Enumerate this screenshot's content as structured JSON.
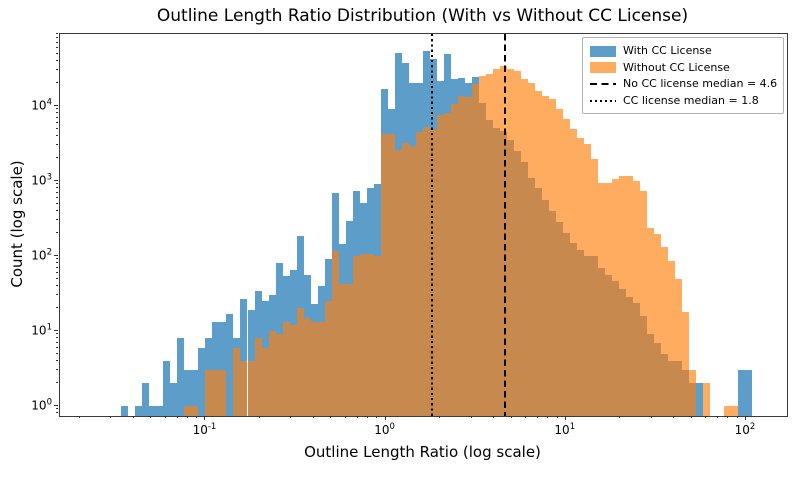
{
  "title": "Outline Length Ratio Distribution (With vs Without CC License)",
  "axes": {
    "xlabel": "Outline Length Ratio (log scale)",
    "ylabel": "Count (log scale)",
    "x_scale": "log",
    "y_scale": "log",
    "x_tick_exponents": [
      -1,
      0,
      1,
      2
    ],
    "y_tick_exponents": [
      0,
      1,
      2,
      3,
      4
    ],
    "tick_color": "#333333",
    "spine_color": "#3a3a3a"
  },
  "legend": {
    "position": "upper right",
    "items": [
      {
        "kind": "patch",
        "label": "With CC License"
      },
      {
        "kind": "patch",
        "label": "Without CC License"
      },
      {
        "kind": "dashed-line",
        "label": "No CC license median = 4.6"
      },
      {
        "kind": "dotted-line",
        "label": "CC license median = 1.8"
      }
    ]
  },
  "chart_data": {
    "type": "bar",
    "subtype": "overlapping-log-histogram",
    "xlim": [
      0.01558,
      169.0
    ],
    "ylim": [
      0.736,
      91200
    ],
    "grid": false,
    "bins": {
      "log10_start": -1.4667,
      "log10_width": 0.038889,
      "count": 90
    },
    "series": [
      {
        "name": "With CC License",
        "color": "#1f77b4",
        "alpha": 0.72,
        "counts": [
          1,
          0,
          1,
          2,
          1,
          1,
          4,
          2,
          8,
          3,
          3,
          6,
          8,
          13,
          13,
          17,
          8,
          27,
          19,
          34,
          25,
          30,
          81,
          54,
          65,
          185,
          55,
          23,
          40,
          90,
          690,
          145,
          290,
          735,
          510,
          810,
          900,
          17000,
          9200,
          51000,
          38000,
          20000,
          20000,
          54000,
          42500,
          21500,
          49000,
          23000,
          23500,
          20000,
          24000,
          11000,
          6500,
          5100,
          4650,
          3500,
          2500,
          1800,
          1100,
          800,
          560,
          400,
          280,
          200,
          150,
          120,
          100,
          100,
          70,
          55,
          46,
          36,
          28,
          24,
          16,
          9,
          7,
          5,
          4,
          4,
          3,
          2,
          2,
          0,
          0,
          0,
          0,
          0,
          3,
          3
        ]
      },
      {
        "name": "Without CC License",
        "color": "#ff7f0e",
        "alpha": 0.66,
        "counts": [
          0,
          0,
          0,
          0,
          0,
          0,
          0,
          0,
          0,
          1,
          1,
          0,
          3,
          3,
          3,
          0,
          6,
          4,
          4,
          8,
          6,
          10,
          9,
          13,
          12,
          20,
          15,
          13,
          13,
          25,
          115,
          42,
          42,
          100,
          106,
          106,
          100,
          4200,
          4200,
          2600,
          3200,
          2900,
          4500,
          5200,
          4800,
          7500,
          8000,
          10500,
          13700,
          13000,
          19800,
          25500,
          27000,
          31600,
          34500,
          31000,
          29000,
          23000,
          20500,
          16000,
          13500,
          12300,
          9000,
          6700,
          5000,
          3700,
          3100,
          1950,
          940,
          930,
          1070,
          1180,
          1180,
          1000,
          730,
          235,
          197,
          130,
          85,
          49,
          18,
          3,
          0,
          2,
          0,
          0,
          1,
          1,
          0,
          0
        ]
      }
    ],
    "lines": [
      {
        "label": "No CC license median = 4.6",
        "value": 4.6,
        "style": "dashed",
        "color": "#000000"
      },
      {
        "label": "CC license median = 1.8",
        "value": 1.8,
        "style": "dotted",
        "color": "#000000"
      }
    ]
  }
}
